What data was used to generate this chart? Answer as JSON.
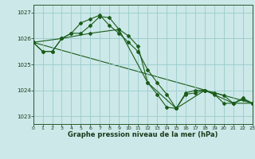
{
  "title": "Graphe pression niveau de la mer (hPa)",
  "background_color": "#cce8e8",
  "grid_color": "#99cccc",
  "line_color": "#1a5c1a",
  "xlim": [
    0,
    23
  ],
  "ylim": [
    1022.7,
    1027.3
  ],
  "yticks": [
    1023,
    1024,
    1025,
    1026,
    1027
  ],
  "xticks": [
    0,
    1,
    2,
    3,
    4,
    5,
    6,
    7,
    8,
    9,
    10,
    11,
    12,
    13,
    14,
    15,
    16,
    17,
    18,
    19,
    20,
    21,
    22,
    23
  ],
  "line1_x": [
    0,
    1,
    2,
    3,
    4,
    5,
    6,
    7,
    8,
    9,
    10,
    11,
    12,
    13,
    14,
    15,
    16,
    17,
    18,
    19,
    20,
    21,
    22,
    23
  ],
  "line1_y": [
    1025.85,
    1025.5,
    1025.5,
    1026.0,
    1026.2,
    1026.6,
    1026.75,
    1026.9,
    1026.5,
    1026.2,
    1025.85,
    1025.5,
    1024.8,
    1024.3,
    1023.85,
    1023.3,
    1023.9,
    1024.0,
    1024.0,
    1023.9,
    1023.8,
    1023.5,
    1023.65,
    1023.5
  ],
  "line2_x": [
    0,
    1,
    2,
    3,
    4,
    5,
    6,
    7,
    8,
    9,
    10,
    11,
    12,
    13,
    14,
    15,
    16,
    17,
    18,
    19,
    20,
    21,
    22,
    23
  ],
  "line2_y": [
    1025.85,
    1025.5,
    1025.5,
    1026.0,
    1026.2,
    1026.2,
    1026.5,
    1026.85,
    1026.8,
    1026.35,
    1026.1,
    1025.7,
    1024.3,
    1023.85,
    1023.35,
    1023.3,
    1023.85,
    1023.9,
    1024.0,
    1023.85,
    1023.5,
    1023.5,
    1023.7,
    1023.5
  ],
  "line3_x": [
    0,
    3,
    6,
    9,
    12,
    15,
    18,
    21,
    23
  ],
  "line3_y": [
    1025.85,
    1026.0,
    1026.2,
    1026.35,
    1024.3,
    1023.3,
    1024.0,
    1023.5,
    1023.5
  ],
  "line4_x": [
    0,
    23
  ],
  "line4_y": [
    1025.85,
    1023.5
  ]
}
